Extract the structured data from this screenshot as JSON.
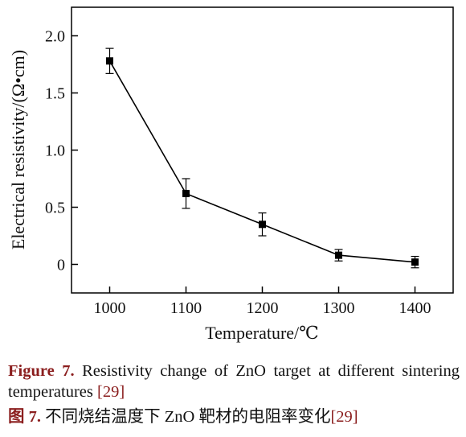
{
  "chart_data": {
    "type": "line",
    "xlabel": "Temperature/℃",
    "ylabel": "Electrical resistivity/(Ω•cm)",
    "x": [
      1000,
      1100,
      1200,
      1300,
      1400
    ],
    "y": [
      1.78,
      0.62,
      0.35,
      0.08,
      0.02
    ],
    "y_error": [
      0.11,
      0.13,
      0.1,
      0.05,
      0.05
    ],
    "xlim": [
      950,
      1450
    ],
    "ylim": [
      -0.25,
      2.25
    ],
    "x_ticks": [
      "1000",
      "1100",
      "1200",
      "1300",
      "1400"
    ],
    "y_ticks": [
      {
        "value": 0,
        "label": "0"
      },
      {
        "value": 0.5,
        "label": "0.5"
      },
      {
        "value": 1.0,
        "label": "1.0"
      },
      {
        "value": 1.5,
        "label": "1.5"
      },
      {
        "value": 2.0,
        "label": "2.0"
      }
    ],
    "marker": "square",
    "grid": false,
    "color": "#000000"
  },
  "caption": {
    "en_label": "Figure 7.",
    "en_text": "Resistivity change of ZnO target at different sintering temperatures",
    "en_ref": "[29]",
    "zh_label": "图 7.",
    "zh_text": "不同烧结温度下 ZnO 靶材的电阻率变化",
    "zh_ref": "[29]",
    "label_color": "#8b1e1e"
  }
}
